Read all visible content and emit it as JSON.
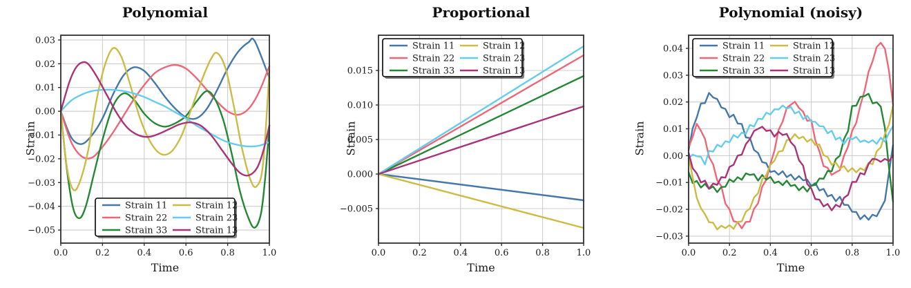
{
  "figure": {
    "background": "#ffffff",
    "text_color": "#1a1a1a",
    "grid_color": "#cdcdcd",
    "spine_color": "#2f2f2f"
  },
  "palette": {
    "strain_11": "#4477AA",
    "strain_22": "#EE6677",
    "strain_33": "#228833",
    "strain_12": "#CCBB44",
    "strain_23": "#66CCEE",
    "strain_13": "#AA3377"
  },
  "chart_data": [
    {
      "type": "line",
      "curve": "smooth",
      "title": "Polynomial",
      "xlabel": "Time",
      "ylabel": "Strain",
      "xlim": [
        0,
        1
      ],
      "ylim": [
        -0.0555,
        0.032
      ],
      "grid": true,
      "legend": {
        "loc": "lower center",
        "ncol": 2
      },
      "xticks": {
        "values": [
          0,
          0.2,
          0.4,
          0.6,
          0.8,
          1.0
        ],
        "labels": [
          "0.0",
          "0.2",
          "0.4",
          "0.6",
          "0.8",
          "1.0"
        ]
      },
      "yticks": {
        "values": [
          0.03,
          0.02,
          0.01,
          0,
          -0.01,
          -0.02,
          -0.03,
          -0.04,
          -0.05
        ],
        "labels": [
          "0.03",
          "0.02",
          "0.01",
          "0.00",
          "−0.01",
          "−0.02",
          "−0.03",
          "−0.04",
          "−0.05"
        ]
      },
      "series": [
        {
          "name": "Strain 11",
          "color": "#4477AA",
          "x": [
            0,
            0.05,
            0.1,
            0.15,
            0.2,
            0.25,
            0.3,
            0.35,
            0.4,
            0.45,
            0.5,
            0.55,
            0.6,
            0.65,
            0.7,
            0.75,
            0.8,
            0.85,
            0.9,
            0.93,
            1.0
          ],
          "y": [
            0,
            -0.011,
            -0.0138,
            -0.01,
            -0.003,
            0.007,
            0.015,
            0.0185,
            0.017,
            0.012,
            0.006,
            0.001,
            -0.0025,
            -0.003,
            0.001,
            0.009,
            0.018,
            0.025,
            0.029,
            0.0295,
            0.014
          ]
        },
        {
          "name": "Strain 22",
          "color": "#EE6677",
          "x": [
            0,
            0.05,
            0.1,
            0.15,
            0.2,
            0.25,
            0.3,
            0.35,
            0.4,
            0.45,
            0.5,
            0.55,
            0.6,
            0.65,
            0.7,
            0.75,
            0.8,
            0.85,
            0.9,
            0.95,
            1.0
          ],
          "y": [
            0,
            -0.013,
            -0.019,
            -0.0195,
            -0.015,
            -0.009,
            -0.002,
            0.005,
            0.011,
            0.016,
            0.0185,
            0.0195,
            0.018,
            0.014,
            0.009,
            0.004,
            0.0,
            -0.0015,
            0.001,
            0.008,
            0.019
          ]
        },
        {
          "name": "Strain 33",
          "color": "#228833",
          "x": [
            0,
            0.03,
            0.06,
            0.09,
            0.12,
            0.16,
            0.2,
            0.25,
            0.3,
            0.35,
            0.4,
            0.45,
            0.5,
            0.55,
            0.6,
            0.65,
            0.7,
            0.74,
            0.78,
            0.82,
            0.86,
            0.9,
            0.93,
            0.96,
            0.98,
            1.0
          ],
          "y": [
            0,
            -0.025,
            -0.041,
            -0.045,
            -0.04,
            -0.026,
            -0.012,
            0.002,
            0.0075,
            0.005,
            -0.001,
            -0.005,
            -0.0065,
            -0.005,
            -0.002,
            0.004,
            0.0085,
            0.005,
            -0.004,
            -0.018,
            -0.034,
            -0.045,
            -0.049,
            -0.043,
            -0.028,
            -0.006
          ]
        },
        {
          "name": "Strain 12",
          "color": "#CCBB44",
          "x": [
            0,
            0.03,
            0.06,
            0.09,
            0.13,
            0.17,
            0.21,
            0.25,
            0.29,
            0.33,
            0.38,
            0.43,
            0.48,
            0.53,
            0.58,
            0.63,
            0.68,
            0.72,
            0.75,
            0.79,
            0.83,
            0.87,
            0.91,
            0.94,
            0.97,
            1.0
          ],
          "y": [
            0,
            -0.024,
            -0.033,
            -0.03,
            -0.017,
            0.004,
            0.019,
            0.0265,
            0.023,
            0.012,
            -0.003,
            -0.013,
            -0.018,
            -0.017,
            -0.01,
            0.002,
            0.014,
            0.022,
            0.0245,
            0.018,
            0.002,
            -0.016,
            -0.029,
            -0.0315,
            -0.022,
            0.017
          ]
        },
        {
          "name": "Strain 23",
          "color": "#66CCEE",
          "x": [
            0,
            0.05,
            0.1,
            0.15,
            0.2,
            0.25,
            0.3,
            0.35,
            0.4,
            0.45,
            0.5,
            0.55,
            0.6,
            0.65,
            0.7,
            0.75,
            0.8,
            0.85,
            0.9,
            0.95,
            1.0
          ],
          "y": [
            0,
            0.0045,
            0.007,
            0.0085,
            0.009,
            0.009,
            0.0085,
            0.0075,
            0.006,
            0.004,
            0.002,
            -0.0005,
            -0.003,
            -0.006,
            -0.0085,
            -0.011,
            -0.013,
            -0.0142,
            -0.0148,
            -0.0145,
            -0.013
          ]
        },
        {
          "name": "Strain 13",
          "color": "#AA3377",
          "x": [
            0,
            0.04,
            0.07,
            0.1,
            0.13,
            0.17,
            0.22,
            0.27,
            0.32,
            0.37,
            0.42,
            0.47,
            0.52,
            0.57,
            0.62,
            0.67,
            0.72,
            0.77,
            0.82,
            0.86,
            0.9,
            0.94,
            0.97,
            1.0
          ],
          "y": [
            0,
            0.012,
            0.018,
            0.0205,
            0.02,
            0.015,
            0.007,
            -0.001,
            -0.007,
            -0.01,
            -0.0108,
            -0.0095,
            -0.0075,
            -0.0055,
            -0.0047,
            -0.006,
            -0.01,
            -0.016,
            -0.022,
            -0.026,
            -0.027,
            -0.024,
            -0.017,
            -0.006
          ]
        }
      ]
    },
    {
      "type": "line",
      "curve": "linear",
      "title": "Proportional",
      "xlabel": "Time",
      "ylabel": "Strain",
      "xlim": [
        0,
        1
      ],
      "ylim": [
        -0.01,
        0.0201
      ],
      "grid": true,
      "legend": {
        "loc": "upper left",
        "ncol": 2
      },
      "xticks": {
        "values": [
          0,
          0.2,
          0.4,
          0.6,
          0.8,
          1.0
        ],
        "labels": [
          "0.0",
          "0.2",
          "0.4",
          "0.6",
          "0.8",
          "1.0"
        ]
      },
      "yticks": {
        "values": [
          0.015,
          0.01,
          0.005,
          0,
          -0.005
        ],
        "labels": [
          "0.015",
          "0.010",
          "0.005",
          "0.000",
          "−0.005"
        ]
      },
      "series": [
        {
          "name": "Strain 11",
          "color": "#4477AA",
          "x": [
            0,
            1
          ],
          "y": [
            0,
            -0.0038
          ]
        },
        {
          "name": "Strain 22",
          "color": "#EE6677",
          "x": [
            0,
            1
          ],
          "y": [
            0,
            0.0172
          ]
        },
        {
          "name": "Strain 33",
          "color": "#228833",
          "x": [
            0,
            1
          ],
          "y": [
            0,
            0.0142
          ]
        },
        {
          "name": "Strain 12",
          "color": "#CCBB44",
          "x": [
            0,
            1
          ],
          "y": [
            0,
            -0.0078
          ]
        },
        {
          "name": "Strain 23",
          "color": "#66CCEE",
          "x": [
            0,
            1
          ],
          "y": [
            0,
            0.0185
          ]
        },
        {
          "name": "Strain 13",
          "color": "#AA3377",
          "x": [
            0,
            1
          ],
          "y": [
            0,
            0.0098
          ]
        }
      ]
    },
    {
      "type": "line",
      "curve": "linear",
      "title": "Polynomial (noisy)",
      "xlabel": "Time",
      "ylabel": "Strain",
      "xlim": [
        0,
        1
      ],
      "ylim": [
        -0.0326,
        0.0449
      ],
      "grid": true,
      "legend": {
        "loc": "upper left",
        "ncol": 2
      },
      "xticks": {
        "values": [
          0,
          0.2,
          0.4,
          0.6,
          0.8,
          1.0
        ],
        "labels": [
          "0.0",
          "0.2",
          "0.4",
          "0.6",
          "0.8",
          "1.0"
        ]
      },
      "yticks": {
        "values": [
          0.04,
          0.03,
          0.02,
          0.01,
          0,
          -0.01,
          -0.02,
          -0.03
        ],
        "labels": [
          "0.04",
          "0.03",
          "0.02",
          "0.01",
          "0.00",
          "−0.01",
          "−0.02",
          "−0.03"
        ]
      },
      "x": [
        0,
        0.02,
        0.04,
        0.06,
        0.08,
        0.1,
        0.12,
        0.14,
        0.16,
        0.18,
        0.2,
        0.22,
        0.24,
        0.26,
        0.28,
        0.3,
        0.32,
        0.34,
        0.36,
        0.38,
        0.4,
        0.42,
        0.44,
        0.46,
        0.48,
        0.5,
        0.52,
        0.54,
        0.56,
        0.58,
        0.6,
        0.62,
        0.64,
        0.66,
        0.68,
        0.7,
        0.72,
        0.74,
        0.76,
        0.78,
        0.8,
        0.82,
        0.84,
        0.86,
        0.88,
        0.9,
        0.92,
        0.94,
        0.96,
        0.98,
        1.0
      ],
      "series": [
        {
          "name": "Strain 11",
          "color": "#4477AA",
          "y": [
            0.002,
            0.0102,
            0.0142,
            0.0195,
            0.0196,
            0.0234,
            0.0217,
            0.0211,
            0.018,
            0.0174,
            0.0143,
            0.0153,
            0.012,
            0.0118,
            0.0068,
            0.0066,
            0.0021,
            0.001,
            -0.0024,
            -0.0028,
            -0.0061,
            -0.0057,
            -0.0071,
            -0.0058,
            -0.008,
            -0.007,
            -0.009,
            -0.0076,
            -0.0092,
            -0.0089,
            -0.0113,
            -0.0102,
            -0.013,
            -0.0124,
            -0.0152,
            -0.0146,
            -0.017,
            -0.0153,
            -0.0183,
            -0.0184,
            -0.0209,
            -0.021,
            -0.0237,
            -0.0222,
            -0.0239,
            -0.022,
            -0.0226,
            -0.0197,
            -0.0168,
            -0.0063,
            0.004
          ]
        },
        {
          "name": "Strain 22",
          "color": "#EE6677",
          "y": [
            0.0031,
            0.007,
            0.0119,
            0.0093,
            0.0063,
            -0.0005,
            -0.0032,
            -0.0092,
            -0.0114,
            -0.0179,
            -0.02,
            -0.0244,
            -0.0248,
            -0.0271,
            -0.0247,
            -0.0246,
            -0.0198,
            -0.0178,
            -0.0115,
            -0.009,
            -0.0031,
            0.0018,
            0.0096,
            0.0127,
            0.0178,
            0.019,
            0.0201,
            0.0178,
            0.0164,
            0.013,
            0.0132,
            0.0057,
            0.0016,
            -0.0039,
            -0.0045,
            -0.0072,
            -0.0062,
            -0.0054,
            0.0,
            0.0034,
            0.0093,
            0.0122,
            0.0187,
            0.024,
            0.0312,
            0.0352,
            0.0405,
            0.0421,
            0.0399,
            0.0317,
            0.019
          ]
        },
        {
          "name": "Strain 33",
          "color": "#228833",
          "y": [
            -0.0062,
            -0.0102,
            -0.0094,
            -0.0119,
            -0.0105,
            -0.0124,
            -0.0115,
            -0.0136,
            -0.0117,
            -0.0116,
            -0.0088,
            -0.0098,
            -0.008,
            -0.009,
            -0.0066,
            -0.0072,
            -0.0069,
            -0.0093,
            -0.0072,
            -0.009,
            -0.0079,
            -0.0102,
            -0.0096,
            -0.011,
            -0.0093,
            -0.0113,
            -0.0109,
            -0.0129,
            -0.0115,
            -0.0134,
            -0.0112,
            -0.0109,
            -0.0085,
            -0.0086,
            -0.0057,
            -0.0058,
            -0.0013,
            0.0,
            0.0062,
            0.0092,
            0.0185,
            0.0186,
            0.0219,
            0.0222,
            0.0231,
            0.0195,
            0.0199,
            0.0183,
            0.0103,
            -0.0045,
            -0.0172
          ]
        },
        {
          "name": "Strain 12",
          "color": "#CCBB44",
          "y": [
            -0.0003,
            -0.0081,
            -0.0157,
            -0.0196,
            -0.0218,
            -0.0248,
            -0.025,
            -0.0275,
            -0.0261,
            -0.027,
            -0.0259,
            -0.0273,
            -0.0247,
            -0.0245,
            -0.0209,
            -0.0197,
            -0.0156,
            -0.014,
            -0.0088,
            -0.0073,
            -0.0034,
            -0.0019,
            0.0015,
            0.0018,
            0.0058,
            0.0061,
            0.008,
            0.0064,
            0.0071,
            0.0052,
            0.0062,
            0.004,
            0.0042,
            0.0002,
            -0.0005,
            -0.0034,
            -0.0026,
            -0.0048,
            -0.0039,
            -0.006,
            -0.0046,
            -0.0062,
            -0.0047,
            -0.0055,
            -0.0027,
            -0.0032,
            0.0016,
            0.0031,
            0.008,
            0.0116,
            0.0187
          ]
        },
        {
          "name": "Strain 23",
          "color": "#66CCEE",
          "y": [
            -0.001,
            0.0004,
            -0.0002,
            -0.0004,
            -0.0033,
            0.0018,
            0.0015,
            0.0041,
            0.0033,
            0.0054,
            0.005,
            0.0077,
            0.0067,
            0.0086,
            0.0081,
            0.0115,
            0.0108,
            0.0138,
            0.0136,
            0.016,
            0.0154,
            0.0173,
            0.0172,
            0.0187,
            0.0175,
            0.0182,
            0.0157,
            0.0165,
            0.0136,
            0.0149,
            0.0127,
            0.0126,
            0.011,
            0.0109,
            0.0083,
            0.0093,
            0.006,
            0.0068,
            0.0043,
            0.0066,
            0.0061,
            0.007,
            0.0051,
            0.0057,
            0.0049,
            0.0058,
            0.0044,
            0.0067,
            0.0052,
            0.0085,
            0.011
          ]
        },
        {
          "name": "Strain 13",
          "color": "#AA3377",
          "y": [
            0.0011,
            -0.0047,
            -0.0066,
            -0.01,
            -0.0093,
            -0.0123,
            -0.0104,
            -0.0109,
            -0.008,
            -0.0082,
            -0.0042,
            -0.0034,
            0.0,
            0.0004,
            0.0043,
            0.0062,
            0.0092,
            0.01,
            0.0108,
            0.0092,
            0.0095,
            0.0071,
            0.0089,
            0.0077,
            0.0081,
            0.005,
            0.0034,
            -0.0017,
            -0.0037,
            -0.0105,
            -0.0122,
            -0.0162,
            -0.0164,
            -0.0189,
            -0.018,
            -0.0204,
            -0.0183,
            -0.0191,
            -0.0157,
            -0.0146,
            -0.0098,
            -0.0098,
            -0.0065,
            -0.007,
            -0.0031,
            -0.0012,
            -0.0014,
            -0.0023,
            -0.0012,
            -0.002,
            0.0001
          ]
        }
      ]
    }
  ]
}
